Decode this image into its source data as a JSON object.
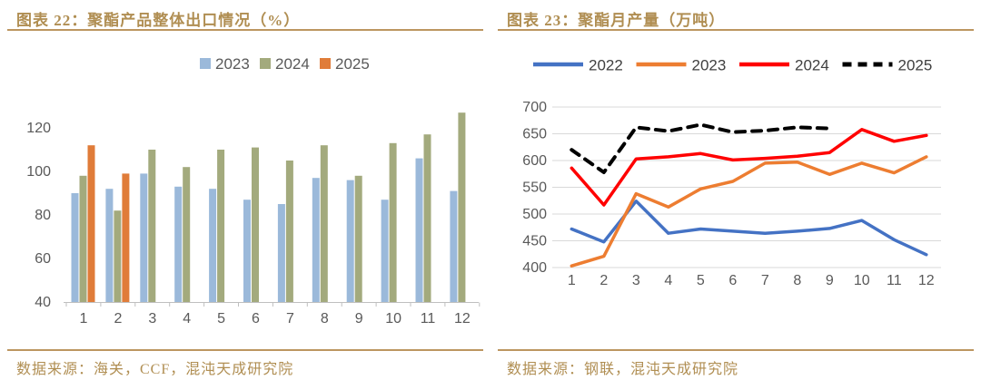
{
  "colors": {
    "accent_text": "#B08E52",
    "rule": "#BC9660",
    "axis_text": "#595959",
    "legend_text": "#404040",
    "gridline": "#D9D9D9",
    "axis_line": "#BFBFBF"
  },
  "panels": [
    {
      "figure_label": "图表 22：聚酯产品整体出口情况（%）",
      "source": "数据来源：海关，CCF，混沌天成研究院"
    },
    {
      "figure_label": "图表 23：聚酯月产量（万吨）",
      "source": "数据来源：钢联，混沌天成研究院"
    }
  ],
  "chart_data": [
    {
      "type": "bar",
      "title": "聚酯产品整体出口情况（%）",
      "categories": [
        "1",
        "2",
        "3",
        "4",
        "5",
        "6",
        "7",
        "8",
        "9",
        "10",
        "11",
        "12"
      ],
      "series": [
        {
          "name": "2023",
          "color": "#9BB9DA",
          "values": [
            90,
            92,
            99,
            93,
            92,
            87,
            85,
            97,
            96,
            87,
            106,
            91
          ]
        },
        {
          "name": "2024",
          "color": "#A3AA7D",
          "values": [
            98,
            82,
            110,
            102,
            110,
            111,
            105,
            112,
            98,
            113,
            117,
            127
          ]
        },
        {
          "name": "2025",
          "color": "#E07C39",
          "values": [
            112,
            99,
            null,
            null,
            null,
            null,
            null,
            null,
            null,
            null,
            null,
            null
          ]
        }
      ],
      "xlabel": "",
      "ylabel": "",
      "ylim": [
        40,
        133
      ],
      "yticks": [
        40,
        60,
        80,
        100,
        120
      ],
      "grid": false,
      "legend_position": "top"
    },
    {
      "type": "line",
      "title": "聚酯月产量（万吨）",
      "categories": [
        "1",
        "2",
        "3",
        "4",
        "5",
        "6",
        "7",
        "8",
        "9",
        "10",
        "11",
        "12"
      ],
      "series": [
        {
          "name": "2022",
          "color": "#4472C4",
          "dashed": false,
          "values": [
            472,
            448,
            524,
            464,
            472,
            468,
            464,
            468,
            473,
            488,
            452,
            424
          ]
        },
        {
          "name": "2023",
          "color": "#ED7D31",
          "dashed": false,
          "values": [
            403,
            421,
            538,
            513,
            547,
            561,
            595,
            597,
            574,
            595,
            577,
            607
          ]
        },
        {
          "name": "2024",
          "color": "#FF0000",
          "dashed": false,
          "values": [
            586,
            517,
            603,
            607,
            613,
            601,
            604,
            608,
            615,
            658,
            636,
            647
          ]
        },
        {
          "name": "2025",
          "color": "#000000",
          "dashed": true,
          "values": [
            620,
            578,
            662,
            655,
            667,
            653,
            656,
            662,
            660,
            null,
            null,
            null
          ]
        }
      ],
      "xlabel": "",
      "ylabel": "",
      "ylim": [
        400,
        700
      ],
      "yticks": [
        400,
        450,
        500,
        550,
        600,
        650,
        700
      ],
      "grid": true,
      "legend_position": "top"
    }
  ]
}
